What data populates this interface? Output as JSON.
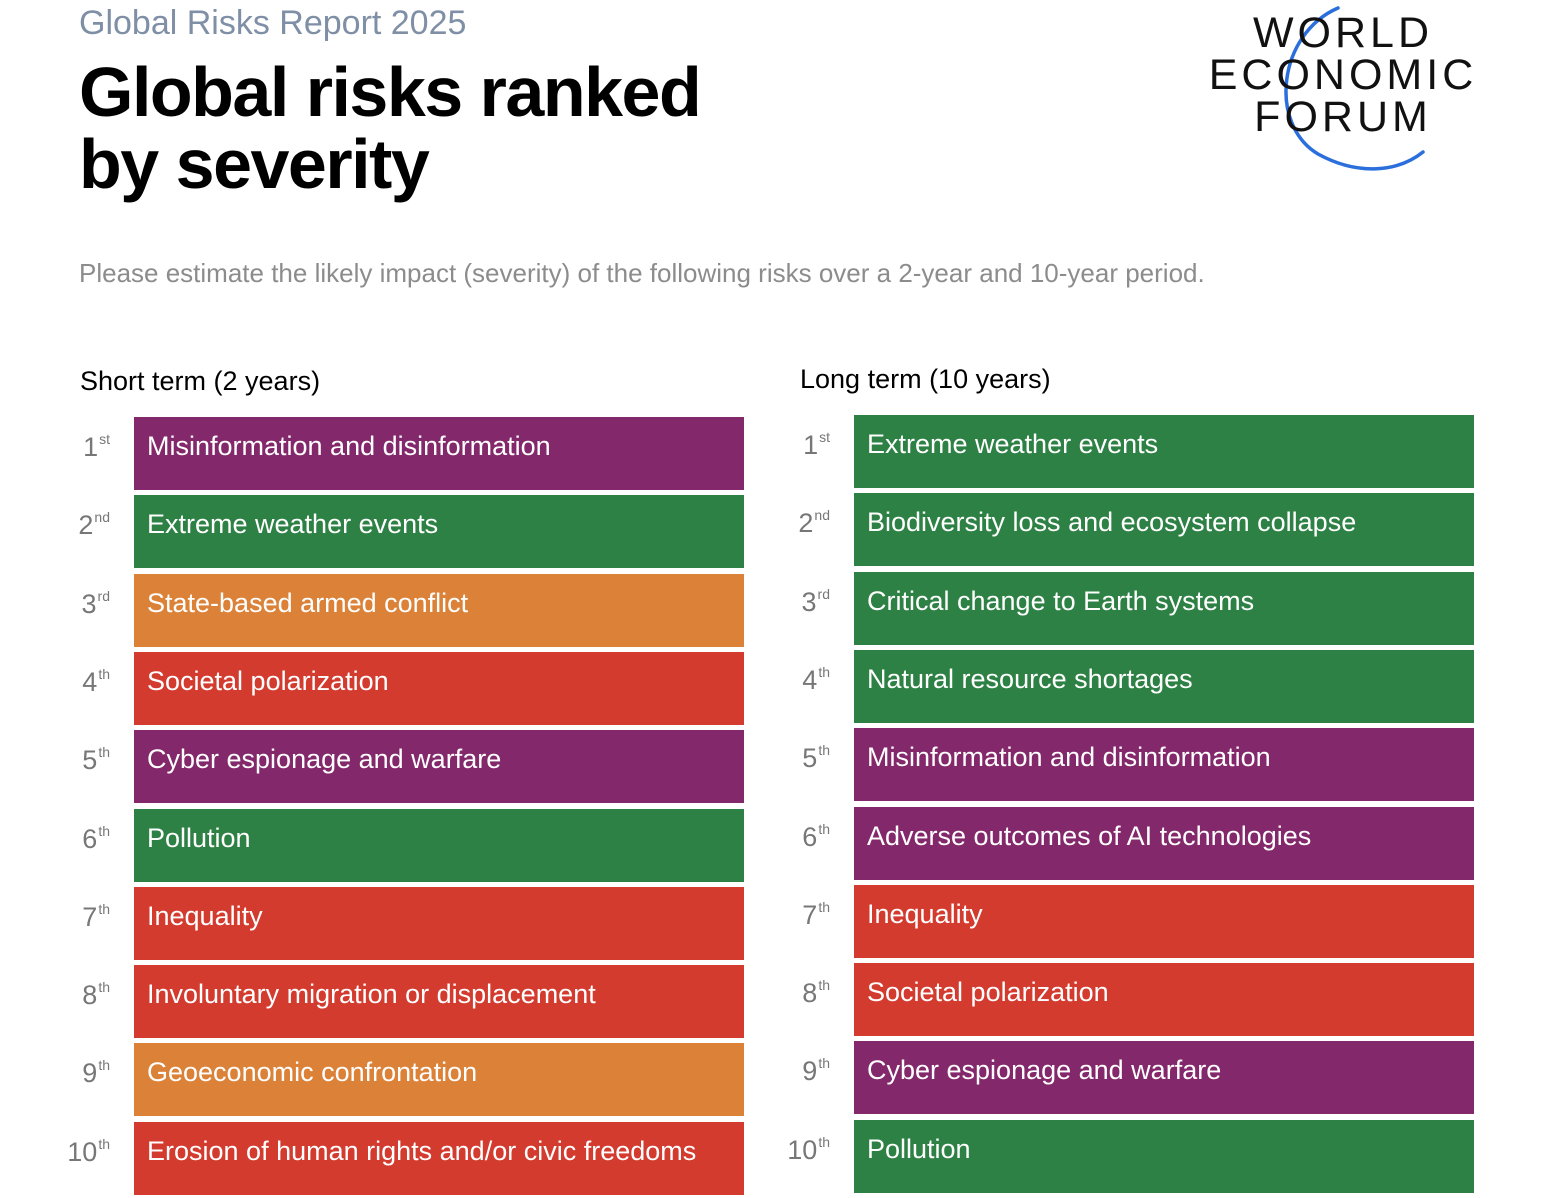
{
  "header": {
    "report_label": "Global Risks Report 2025",
    "title_line1": "Global risks ranked",
    "title_line2": "by severity",
    "subtitle": "Please estimate the likely impact (severity) of the following risks over a 2-year and 10-year period."
  },
  "logo": {
    "line1": "WORLD",
    "line2": "ECONOMIC",
    "line3": "FORUM",
    "arc_color": "#2a6fdb"
  },
  "colors": {
    "purple": "#84286c",
    "green": "#2e8144",
    "orange": "#db8238",
    "red": "#d33b2f"
  },
  "chart_data": [
    {
      "type": "table",
      "title": "Short term (2 years)",
      "rows": [
        {
          "rank": "1",
          "suffix": "st",
          "label": "Misinformation and disinformation",
          "color": "purple"
        },
        {
          "rank": "2",
          "suffix": "nd",
          "label": "Extreme weather events",
          "color": "green"
        },
        {
          "rank": "3",
          "suffix": "rd",
          "label": "State-based armed conflict",
          "color": "orange"
        },
        {
          "rank": "4",
          "suffix": "th",
          "label": "Societal polarization",
          "color": "red"
        },
        {
          "rank": "5",
          "suffix": "th",
          "label": "Cyber espionage and warfare",
          "color": "purple"
        },
        {
          "rank": "6",
          "suffix": "th",
          "label": "Pollution",
          "color": "green"
        },
        {
          "rank": "7",
          "suffix": "th",
          "label": "Inequality",
          "color": "red"
        },
        {
          "rank": "8",
          "suffix": "th",
          "label": "Involuntary migration or displacement",
          "color": "red"
        },
        {
          "rank": "9",
          "suffix": "th",
          "label": "Geoeconomic confrontation",
          "color": "orange"
        },
        {
          "rank": "10",
          "suffix": "th",
          "label": "Erosion of human rights and/or civic freedoms",
          "color": "red"
        }
      ]
    },
    {
      "type": "table",
      "title": "Long term (10 years)",
      "rows": [
        {
          "rank": "1",
          "suffix": "st",
          "label": "Extreme weather events",
          "color": "green"
        },
        {
          "rank": "2",
          "suffix": "nd",
          "label": "Biodiversity loss and ecosystem collapse",
          "color": "green"
        },
        {
          "rank": "3",
          "suffix": "rd",
          "label": "Critical change to Earth systems",
          "color": "green"
        },
        {
          "rank": "4",
          "suffix": "th",
          "label": "Natural resource shortages",
          "color": "green"
        },
        {
          "rank": "5",
          "suffix": "th",
          "label": "Misinformation and disinformation",
          "color": "purple"
        },
        {
          "rank": "6",
          "suffix": "th",
          "label": "Adverse outcomes of AI technologies",
          "color": "purple"
        },
        {
          "rank": "7",
          "suffix": "th",
          "label": "Inequality",
          "color": "red"
        },
        {
          "rank": "8",
          "suffix": "th",
          "label": "Societal polarization",
          "color": "red"
        },
        {
          "rank": "9",
          "suffix": "th",
          "label": "Cyber espionage and warfare",
          "color": "purple"
        },
        {
          "rank": "10",
          "suffix": "th",
          "label": "Pollution",
          "color": "green"
        }
      ]
    }
  ]
}
